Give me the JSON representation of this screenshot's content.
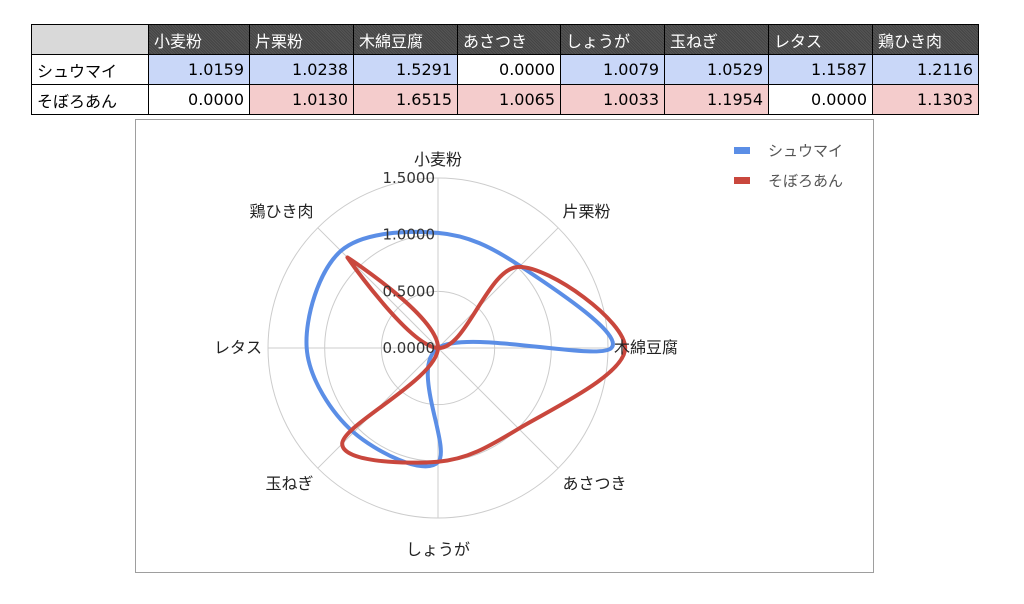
{
  "table": {
    "header": [
      "小麦粉",
      "片栗粉",
      "木綿豆腐",
      "あさつき",
      "しょうが",
      "玉ねぎ",
      "レタス",
      "鶏ひき肉"
    ],
    "rows": [
      {
        "label": "シュウマイ",
        "cells": [
          "1.0159",
          "1.0238",
          "1.5291",
          "0.0000",
          "1.0079",
          "1.0529",
          "1.1587",
          "1.2116"
        ],
        "highlight_color": "#c9d7f8"
      },
      {
        "label": "そぼろあん",
        "cells": [
          "0.0000",
          "1.0130",
          "1.6515",
          "1.0065",
          "1.0033",
          "1.1954",
          "0.0000",
          "1.1303"
        ],
        "highlight_color": "#f4cccc"
      }
    ]
  },
  "chart_data": {
    "type": "radar",
    "categories": [
      "小麦粉",
      "片栗粉",
      "木綿豆腐",
      "あさつき",
      "しょうが",
      "玉ねぎ",
      "レタス",
      "鶏ひき肉"
    ],
    "series": [
      {
        "name": "シュウマイ",
        "color": "#5b8ee6",
        "values": [
          1.0159,
          1.0238,
          1.5291,
          0.0,
          1.0079,
          1.0529,
          1.1587,
          1.2116
        ]
      },
      {
        "name": "そぼろあん",
        "color": "#c9473d",
        "values": [
          0.0,
          1.013,
          1.6515,
          1.0065,
          1.0033,
          1.1954,
          0.0,
          1.1303
        ]
      }
    ],
    "radial_ticks": [
      "0.0000",
      "0.5000",
      "1.0000",
      "1.5000"
    ],
    "rlim": [
      0,
      1.5
    ],
    "smooth_lines": true,
    "legend_position": "top-right",
    "grid": true
  }
}
